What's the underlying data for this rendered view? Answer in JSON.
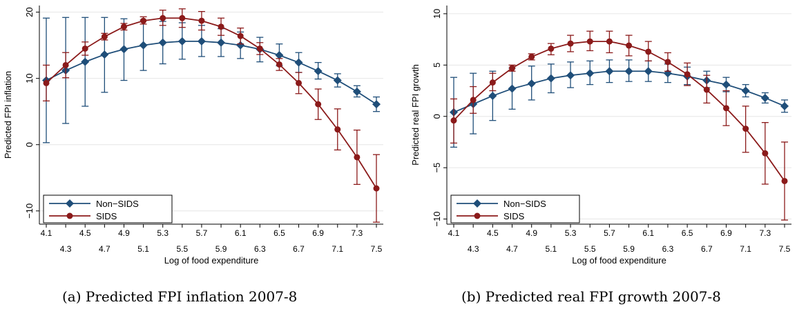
{
  "captions": {
    "a": "(a) Predicted FPI inflation 2007-8",
    "b": "(b) Predicted real FPI growth 2007-8"
  },
  "colors": {
    "non_sids": "#1f4e79",
    "sids": "#8b1a1a",
    "grid": "#e6e6e6",
    "axis": "#000000"
  },
  "chart_data": [
    {
      "type": "line",
      "xlabel": "Log of food expenditure",
      "ylabel": "Predicted FPI inflation",
      "x": [
        4.1,
        4.3,
        4.5,
        4.7,
        4.9,
        5.1,
        5.3,
        5.5,
        5.7,
        5.9,
        6.1,
        6.3,
        6.5,
        6.7,
        6.9,
        7.1,
        7.3,
        7.5
      ],
      "xlim": [
        4.1,
        7.5
      ],
      "ylim": [
        -12,
        21
      ],
      "yticks": [
        -10,
        0,
        10,
        20
      ],
      "grid": true,
      "legend_position": "bottom-left",
      "series": [
        {
          "name": "Non−SIDS",
          "marker": "diamond",
          "color": "#1f4e79",
          "values": [
            9.7,
            11.2,
            12.5,
            13.6,
            14.4,
            15.0,
            15.4,
            15.6,
            15.6,
            15.4,
            15.0,
            14.4,
            13.5,
            12.4,
            11.1,
            9.7,
            8.0,
            6.1
          ],
          "lower": [
            0.3,
            3.2,
            5.8,
            7.9,
            9.7,
            11.2,
            12.2,
            12.9,
            13.3,
            13.3,
            13.0,
            12.5,
            11.9,
            10.9,
            9.9,
            8.7,
            7.2,
            5.0
          ],
          "upper": [
            19.1,
            19.2,
            19.2,
            19.2,
            19.0,
            18.8,
            18.6,
            18.4,
            18.0,
            17.5,
            17.0,
            16.2,
            15.2,
            13.9,
            12.4,
            10.7,
            8.9,
            7.2
          ]
        },
        {
          "name": "SIDS",
          "marker": "circle",
          "color": "#8b1a1a",
          "values": [
            9.3,
            12.0,
            14.5,
            16.3,
            17.8,
            18.7,
            19.1,
            19.1,
            18.7,
            17.8,
            16.4,
            14.5,
            12.1,
            9.3,
            6.1,
            2.3,
            -1.9,
            -6.6
          ],
          "lower": [
            6.6,
            10.1,
            13.5,
            15.8,
            17.3,
            18.2,
            18.0,
            17.7,
            17.3,
            16.5,
            15.2,
            13.6,
            11.2,
            7.7,
            3.8,
            -0.8,
            -6.0,
            -11.7
          ],
          "upper": [
            12.0,
            13.9,
            15.5,
            16.8,
            18.3,
            19.3,
            20.3,
            20.5,
            20.1,
            19.1,
            17.6,
            15.4,
            13.0,
            10.9,
            8.4,
            5.4,
            2.2,
            -1.5
          ]
        }
      ]
    },
    {
      "type": "line",
      "xlabel": "Log of food expenditure",
      "ylabel": "Predicted real FPI growth",
      "x": [
        4.1,
        4.3,
        4.5,
        4.7,
        4.9,
        5.1,
        5.3,
        5.5,
        5.7,
        5.9,
        6.1,
        6.3,
        6.5,
        6.7,
        6.9,
        7.1,
        7.3,
        7.5
      ],
      "xlim": [
        4.1,
        7.5
      ],
      "ylim": [
        -10.5,
        10.8
      ],
      "yticks": [
        -10,
        -5,
        0,
        5,
        10
      ],
      "grid": true,
      "legend_position": "bottom-left",
      "series": [
        {
          "name": "Non−SIDS",
          "marker": "diamond",
          "color": "#1f4e79",
          "values": [
            0.4,
            1.2,
            2.0,
            2.7,
            3.2,
            3.7,
            4.0,
            4.2,
            4.4,
            4.4,
            4.4,
            4.2,
            3.9,
            3.5,
            3.1,
            2.5,
            1.8,
            1.0
          ],
          "lower": [
            -3.0,
            -1.7,
            -0.4,
            0.7,
            1.6,
            2.3,
            2.8,
            3.1,
            3.3,
            3.4,
            3.4,
            3.3,
            3.1,
            2.8,
            2.4,
            1.9,
            1.3,
            0.4
          ],
          "upper": [
            3.8,
            4.2,
            4.4,
            4.7,
            4.9,
            5.1,
            5.3,
            5.4,
            5.5,
            5.5,
            5.4,
            5.1,
            4.8,
            4.4,
            3.8,
            3.1,
            2.3,
            1.6
          ]
        },
        {
          "name": "SIDS",
          "marker": "circle",
          "color": "#8b1a1a",
          "values": [
            -0.4,
            1.6,
            3.3,
            4.7,
            5.8,
            6.6,
            7.1,
            7.3,
            7.3,
            6.9,
            6.3,
            5.3,
            4.1,
            2.6,
            0.8,
            -1.2,
            -3.6,
            -6.3
          ],
          "lower": [
            -2.6,
            0.3,
            2.5,
            4.4,
            5.5,
            6.0,
            6.3,
            6.4,
            6.2,
            5.9,
            5.4,
            4.4,
            3.0,
            1.3,
            -0.9,
            -3.5,
            -6.6,
            -10.1
          ],
          "upper": [
            1.7,
            2.9,
            4.2,
            5.0,
            6.1,
            7.1,
            7.9,
            8.3,
            8.3,
            7.9,
            7.3,
            6.2,
            5.2,
            4.0,
            2.5,
            1.0,
            -0.6,
            -2.5
          ]
        }
      ]
    }
  ]
}
